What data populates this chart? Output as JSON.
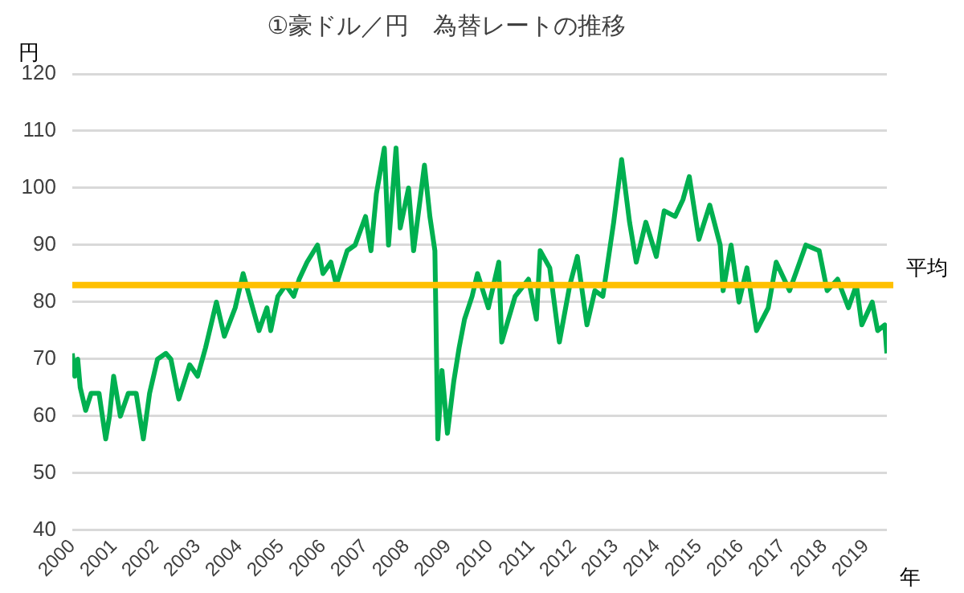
{
  "chart_data": {
    "type": "line",
    "title": "①豪ドル／円　為替レートの推移",
    "xlabel": "年",
    "ylabel": "円",
    "xlim": [
      2000,
      2019.5
    ],
    "xticks": [
      2000,
      2001,
      2002,
      2003,
      2004,
      2005,
      2006,
      2007,
      2008,
      2009,
      2010,
      2011,
      2012,
      2013,
      2014,
      2015,
      2016,
      2017,
      2018,
      2019
    ],
    "ylim": [
      40,
      120
    ],
    "yticks": [
      40,
      50,
      60,
      70,
      80,
      90,
      100,
      110,
      120
    ],
    "grid": "y",
    "legend": false,
    "marker": "none",
    "ref_lines": [
      {
        "axis": "y",
        "value": 83,
        "label": "平均",
        "color": "#ffc000"
      }
    ],
    "series": [
      {
        "color": "#00b050",
        "x": [
          2000.0,
          2000.06,
          2000.13,
          2000.19,
          2000.32,
          2000.45,
          2000.64,
          2000.8,
          2000.89,
          2000.99,
          2001.15,
          2001.34,
          2001.53,
          2001.7,
          2001.85,
          2002.04,
          2002.24,
          2002.36,
          2002.55,
          2002.81,
          2003.0,
          2003.19,
          2003.45,
          2003.64,
          2003.9,
          2004.09,
          2004.28,
          2004.47,
          2004.66,
          2004.75,
          2004.92,
          2005.11,
          2005.3,
          2005.43,
          2005.62,
          2005.87,
          2006.0,
          2006.19,
          2006.32,
          2006.58,
          2006.77,
          2007.02,
          2007.15,
          2007.28,
          2007.47,
          2007.57,
          2007.75,
          2007.85,
          2008.05,
          2008.17,
          2008.43,
          2008.56,
          2008.68,
          2008.75,
          2008.85,
          2008.98,
          2009.13,
          2009.26,
          2009.39,
          2009.57,
          2009.7,
          2009.96,
          2010.21,
          2010.28,
          2010.6,
          2010.92,
          2011.11,
          2011.2,
          2011.43,
          2011.66,
          2011.91,
          2012.09,
          2012.32,
          2012.51,
          2012.7,
          2012.96,
          2013.15,
          2013.34,
          2013.5,
          2013.73,
          2013.98,
          2014.17,
          2014.43,
          2014.62,
          2014.77,
          2015.0,
          2015.26,
          2015.51,
          2015.58,
          2015.77,
          2015.96,
          2016.15,
          2016.38,
          2016.66,
          2016.85,
          2017.17,
          2017.56,
          2017.88,
          2018.07,
          2018.32,
          2018.58,
          2018.77,
          2018.9,
          2019.15,
          2019.28,
          2019.45,
          2019.5
        ],
        "values": [
          71,
          67,
          70,
          65,
          61,
          64,
          64,
          56,
          60,
          67,
          60,
          64,
          64,
          56,
          64,
          70,
          71,
          70,
          63,
          69,
          67,
          72,
          80,
          74,
          79,
          85,
          80,
          75,
          79,
          75,
          81,
          83,
          81,
          84,
          87,
          90,
          85,
          87,
          83,
          89,
          90,
          95,
          89,
          99,
          107,
          90,
          107,
          93,
          100,
          89,
          104,
          95,
          89,
          56,
          68,
          57,
          66,
          72,
          77,
          81,
          85,
          79,
          87,
          73,
          81,
          84,
          77,
          89,
          86,
          73,
          83,
          88,
          76,
          82,
          81,
          94,
          105,
          94,
          87,
          94,
          88,
          96,
          95,
          98,
          102,
          91,
          97,
          90,
          82,
          90,
          80,
          86,
          75,
          79,
          87,
          82,
          90,
          89,
          82,
          84,
          79,
          83,
          76,
          80,
          75,
          76,
          71
        ]
      }
    ]
  }
}
